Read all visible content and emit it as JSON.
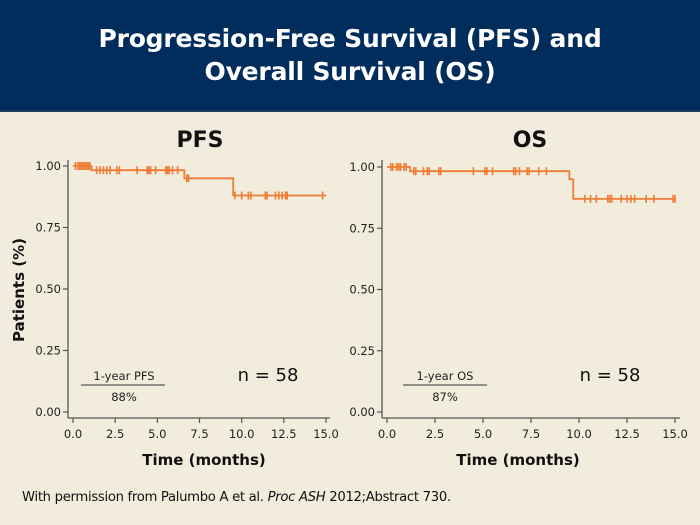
{
  "header": {
    "title_line1": "Progression-Free Survival (PFS) and",
    "title_line2": "Overall Survival (OS)"
  },
  "colors": {
    "header_bg": "#002d5b",
    "background": "#f1ecdc",
    "curve": "#f07b35",
    "axis": "#555555"
  },
  "footer": {
    "prefix": "With permission from Palumbo A et al. ",
    "journal": "Proc ASH",
    "suffix": " 2012;Abstract 730."
  },
  "chart_data": [
    {
      "type": "line",
      "subtype": "kaplan-meier",
      "title": "PFS",
      "xlabel": "Time (months)",
      "ylabel": "Patients (%)",
      "xlim": [
        0,
        15
      ],
      "ylim": [
        0,
        1
      ],
      "xticks": [
        "0.0",
        "2.5",
        "5.0",
        "7.5",
        "10.0",
        "12.5",
        "15.0"
      ],
      "yticks": [
        "0.00",
        "0.25",
        "0.50",
        "0.75",
        "1.00"
      ],
      "grid": false,
      "annotation": {
        "label": "1-year PFS",
        "value": "88%"
      },
      "n_label": "n = 58",
      "steps": [
        {
          "x": 0.0,
          "y": 1.0
        },
        {
          "x": 1.1,
          "y": 0.983
        },
        {
          "x": 6.6,
          "y": 0.95
        },
        {
          "x": 9.5,
          "y": 0.88
        },
        {
          "x": 15.0,
          "y": 0.88
        }
      ],
      "censor_times": [
        0.15,
        0.3,
        0.4,
        0.5,
        0.6,
        0.7,
        0.8,
        0.9,
        1.0,
        1.4,
        1.6,
        1.8,
        2.0,
        2.2,
        2.6,
        2.75,
        3.8,
        4.4,
        4.5,
        4.6,
        4.9,
        5.5,
        5.6,
        5.7,
        5.9,
        6.2,
        6.75,
        6.85,
        9.6,
        10.0,
        10.4,
        10.55,
        11.4,
        11.5,
        12.0,
        12.2,
        12.4,
        12.6,
        12.7,
        14.8
      ]
    },
    {
      "type": "line",
      "subtype": "kaplan-meier",
      "title": "OS",
      "xlabel": "Time (months)",
      "ylabel": "",
      "xlim": [
        0,
        15
      ],
      "ylim": [
        0,
        1
      ],
      "xticks": [
        "0.0",
        "2.5",
        "5.0",
        "7.5",
        "10.0",
        "12.5",
        "15.0"
      ],
      "yticks": [
        "0.00",
        "0.25",
        "0.50",
        "0.75",
        "1.00"
      ],
      "grid": false,
      "annotation": {
        "label": "1-year OS",
        "value": "87%"
      },
      "n_label": "n = 58",
      "steps": [
        {
          "x": 0.0,
          "y": 1.0
        },
        {
          "x": 1.2,
          "y": 0.983
        },
        {
          "x": 9.5,
          "y": 0.95
        },
        {
          "x": 9.7,
          "y": 0.87
        },
        {
          "x": 15.0,
          "y": 0.87
        }
      ],
      "censor_times": [
        0.2,
        0.3,
        0.5,
        0.6,
        0.7,
        0.9,
        1.0,
        1.4,
        1.5,
        1.9,
        2.1,
        2.2,
        2.7,
        2.8,
        4.5,
        5.1,
        5.2,
        5.5,
        6.6,
        6.7,
        6.9,
        7.3,
        7.4,
        7.9,
        8.3,
        10.3,
        10.6,
        10.9,
        11.5,
        11.6,
        11.7,
        12.2,
        12.5,
        12.7,
        12.9,
        13.5,
        13.9,
        14.9,
        15.0
      ]
    }
  ]
}
